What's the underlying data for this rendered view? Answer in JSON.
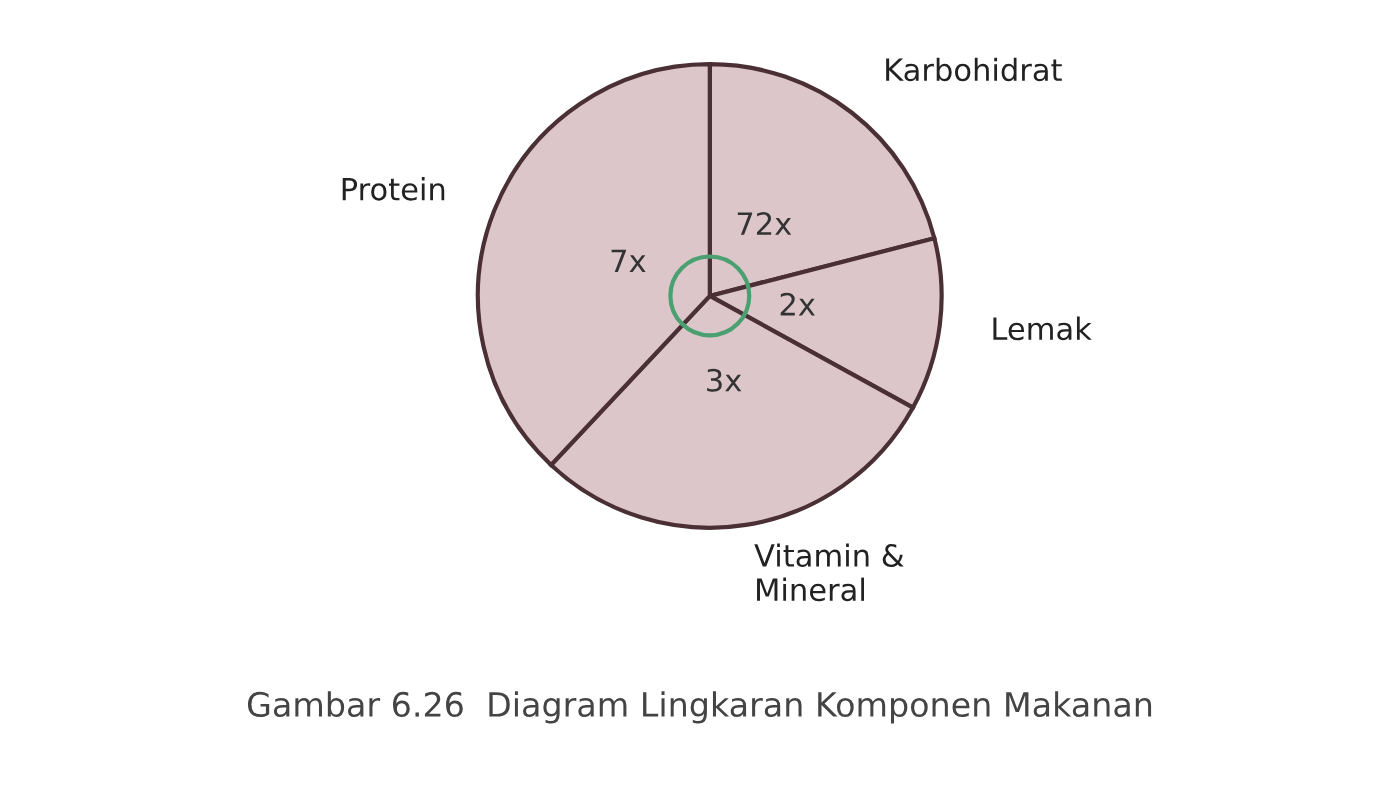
{
  "chart_data": {
    "type": "pie",
    "title": "Gambar 6.26  Diagram Lingkaran Komponen Makanan",
    "categories": [
      "Karbohidrat",
      "Lemak",
      "Vitamin &\nMineral",
      "Protein"
    ],
    "values": [
      21,
      12,
      29,
      38
    ],
    "colors": [
      "#dcc6ca",
      "#dcc6ca",
      "#dcc6ca",
      "#dcc6ca"
    ],
    "annotations": [
      "72x",
      "2x",
      "3x",
      "7x"
    ]
  }
}
